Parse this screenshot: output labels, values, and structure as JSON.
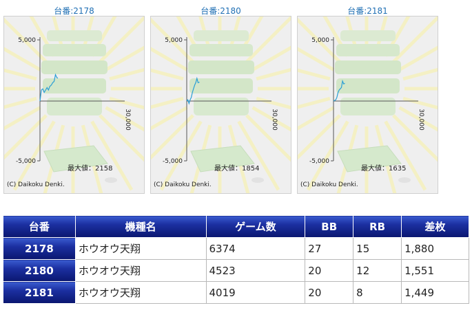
{
  "graphs": [
    {
      "title": "台番:2178",
      "max_label": "最大値：2158",
      "copyright": "(C) Daikoku Denki.",
      "tick_top": "5,000",
      "tick_bottom": "-5,000",
      "tick_right": "30,000"
    },
    {
      "title": "台番:2180",
      "max_label": "最大値：1854",
      "copyright": "(C) Daikoku Denki.",
      "tick_top": "5,000",
      "tick_bottom": "-5,000",
      "tick_right": "30,000"
    },
    {
      "title": "台番:2181",
      "max_label": "最大値：1635",
      "copyright": "(C) Daikoku Denki.",
      "tick_top": "5,000",
      "tick_bottom": "-5,000",
      "tick_right": "30,000"
    }
  ],
  "chart_data": [
    {
      "type": "line",
      "xlim": [
        0,
        30000
      ],
      "ylim": [
        -5000,
        5000
      ],
      "x": [
        0,
        500,
        1000,
        1500,
        2000,
        2500,
        3000,
        3500,
        4000,
        4500,
        5000,
        5500,
        6000,
        6374
      ],
      "y": [
        0,
        900,
        1000,
        700,
        900,
        1100,
        900,
        1200,
        1300,
        1500,
        1600,
        2158,
        1900,
        1880
      ]
    },
    {
      "type": "line",
      "xlim": [
        0,
        30000
      ],
      "ylim": [
        -5000,
        5000
      ],
      "x": [
        0,
        400,
        800,
        1200,
        1600,
        2000,
        2400,
        2800,
        3200,
        3600,
        4000,
        4523
      ],
      "y": [
        0,
        100,
        -200,
        100,
        300,
        700,
        1000,
        1300,
        1500,
        1854,
        1500,
        1551
      ]
    },
    {
      "type": "line",
      "xlim": [
        0,
        30000
      ],
      "ylim": [
        -5000,
        5000
      ],
      "x": [
        0,
        400,
        800,
        1200,
        1600,
        2000,
        2400,
        2800,
        3200,
        3600,
        4019
      ],
      "y": [
        0,
        50,
        100,
        300,
        700,
        900,
        1000,
        1100,
        1635,
        1400,
        1449
      ]
    }
  ],
  "table": {
    "headers": [
      "台番",
      "機種名",
      "ゲーム数",
      "BB",
      "RB",
      "差枚"
    ],
    "rows": [
      [
        "2178",
        "ホウオウ天翔",
        "6374",
        "27",
        "15",
        "1,880"
      ],
      [
        "2180",
        "ホウオウ天翔",
        "4523",
        "20",
        "12",
        "1,551"
      ],
      [
        "2181",
        "ホウオウ天翔",
        "4019",
        "20",
        "8",
        "1,449"
      ]
    ]
  },
  "colors": {
    "line": "#2a9fd6",
    "header_bg": "#1b2fa0",
    "title_text": "#1f6fb4"
  }
}
